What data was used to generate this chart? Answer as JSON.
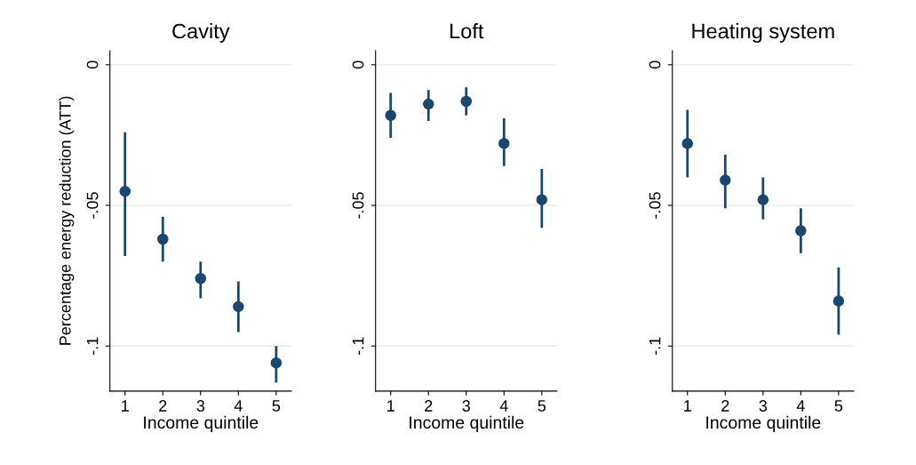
{
  "chart_data": [
    {
      "type": "scatter",
      "title": "Cavity",
      "xlabel": "Income quintile",
      "ylabel": "Percentage energy reduction (ATT)",
      "x": [
        1,
        2,
        3,
        4,
        5
      ],
      "xlim": [
        0.6,
        5.4
      ],
      "xticks": [
        1,
        2,
        3,
        4,
        5
      ],
      "ylim": [
        -0.116,
        0.005
      ],
      "yticks": [
        {
          "value": 0,
          "label": "0"
        },
        {
          "value": -0.05,
          "label": "-.05"
        },
        {
          "value": -0.1,
          "label": "-.1"
        }
      ],
      "grid": "y",
      "marker": "circle",
      "series": [
        {
          "color": "#1a476f",
          "values": [
            -0.045,
            -0.062,
            -0.076,
            -0.086,
            -0.106
          ],
          "errors": [
            [
              -0.068,
              -0.024
            ],
            [
              -0.07,
              -0.054
            ],
            [
              -0.083,
              -0.07
            ],
            [
              -0.095,
              -0.077
            ],
            [
              -0.113,
              -0.1
            ]
          ]
        }
      ]
    },
    {
      "type": "scatter",
      "title": "Loft",
      "xlabel": "Income quintile",
      "x": [
        1,
        2,
        3,
        4,
        5
      ],
      "xlim": [
        0.6,
        5.4
      ],
      "xticks": [
        1,
        2,
        3,
        4,
        5
      ],
      "ylim": [
        -0.116,
        0.005
      ],
      "yticks": [
        {
          "value": 0,
          "label": "0"
        },
        {
          "value": -0.05,
          "label": "-.05"
        },
        {
          "value": -0.1,
          "label": "-.1"
        }
      ],
      "grid": "y",
      "marker": "circle",
      "series": [
        {
          "color": "#1a476f",
          "values": [
            -0.018,
            -0.014,
            -0.013,
            -0.028,
            -0.048
          ],
          "errors": [
            [
              -0.026,
              -0.01
            ],
            [
              -0.02,
              -0.009
            ],
            [
              -0.018,
              -0.008
            ],
            [
              -0.036,
              -0.019
            ],
            [
              -0.058,
              -0.037
            ]
          ]
        }
      ]
    },
    {
      "type": "scatter",
      "title": "Heating system",
      "xlabel": "Income quintile",
      "x": [
        1,
        2,
        3,
        4,
        5
      ],
      "xlim": [
        0.6,
        5.4
      ],
      "xticks": [
        1,
        2,
        3,
        4,
        5
      ],
      "ylim": [
        -0.116,
        0.005
      ],
      "yticks": [
        {
          "value": 0,
          "label": "0"
        },
        {
          "value": -0.05,
          "label": "-.05"
        },
        {
          "value": -0.1,
          "label": "-.1"
        }
      ],
      "grid": "y",
      "marker": "circle",
      "series": [
        {
          "color": "#1a476f",
          "values": [
            -0.028,
            -0.041,
            -0.048,
            -0.059,
            -0.084
          ],
          "errors": [
            [
              -0.04,
              -0.016
            ],
            [
              -0.051,
              -0.032
            ],
            [
              -0.055,
              -0.04
            ],
            [
              -0.067,
              -0.051
            ],
            [
              -0.096,
              -0.072
            ]
          ]
        }
      ]
    }
  ]
}
